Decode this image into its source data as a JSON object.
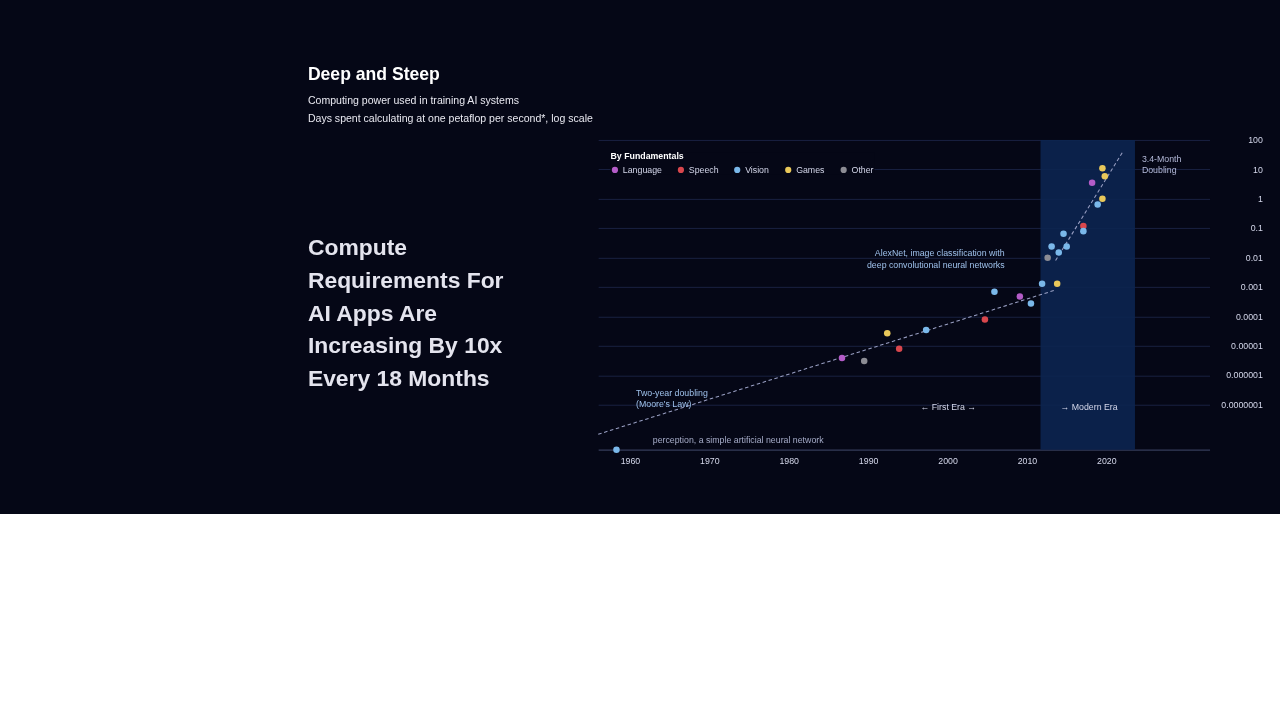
{
  "chart_data": {
    "type": "scatter",
    "title": "Deep and Steep",
    "subtitle": "Computing power used in training AI systems\nDays spent calculating at one petaflop per second*, log scale",
    "legend_title": "By Fundamentals",
    "log": "y",
    "grid": "y",
    "legend": "top left",
    "marker": "circle",
    "xlim": [
      1956,
      2033
    ],
    "xticks": [
      1960,
      1970,
      1980,
      1990,
      2000,
      2010,
      2020
    ],
    "ylim": [
      3e-09,
      100
    ],
    "yticks": [
      100,
      10,
      1,
      0.1,
      0.01,
      0.001,
      0.0001,
      {
        "value": 1e-05,
        "label": "0.00001"
      },
      {
        "value": 1e-06,
        "label": "0.000001"
      },
      {
        "value": 1e-07,
        "label": "0.0000001"
      }
    ],
    "series": [
      {
        "name": "Language",
        "color": "#b45cc8",
        "x": [
          1986.7,
          2009.1,
          2018.2
        ],
        "values": [
          3.9e-06,
          0.00048,
          3.5
        ]
      },
      {
        "name": "Speech",
        "color": "#d9474d",
        "x": [
          1993.9,
          2004.7,
          2017.1
        ],
        "values": [
          8e-06,
          8e-05,
          0.12
        ]
      },
      {
        "name": "Vision",
        "color": "#7ab8ea",
        "x": [
          1958.3,
          1997.3,
          2005.9,
          2010.5,
          2011.9,
          2013.1,
          2014.0,
          2015.0,
          2014.6,
          2017.1,
          2018.9
        ],
        "values": [
          3e-09,
          3.5e-05,
          0.0007,
          0.00028,
          0.0013,
          0.024,
          0.015,
          0.024,
          0.065,
          0.08,
          0.64
        ]
      },
      {
        "name": "Games",
        "color": "#e9c85a",
        "x": [
          1992.4,
          2013.8,
          2019.5,
          2019.8,
          2019.5
        ],
        "values": [
          2.7e-05,
          0.0013,
          11,
          5.9,
          1.0
        ]
      },
      {
        "name": "Other",
        "color": "#8c8c94",
        "x": [
          1989.5,
          2012.6
        ],
        "values": [
          3.1e-06,
          0.01
        ]
      },
      {
        "type": "line",
        "marker": "none",
        "line_style": "dashed",
        "color": "#9aa0c4",
        "x": [
          1956,
          2013.6
        ],
        "values": [
          1e-08,
          0.0008
        ]
      },
      {
        "type": "line",
        "marker": "none",
        "line_style": "dashed",
        "color": "#9aa0c4",
        "x": [
          2013.6,
          2022
        ],
        "values": [
          0.008,
          37
        ]
      }
    ],
    "bands": [
      {
        "axis": "x",
        "from": 2011.7,
        "to": 2023.6,
        "color": "#0c2550"
      }
    ],
    "annotations": [
      "perception, a simple artificial neural network",
      "AlexNet, image classification with\ndeep convolutional neural networks",
      "Two-year doubling\n(Moore's Law)",
      "3.4-Month\nDoubling",
      "←  First Era  →",
      "→  Modern Era",
      "Compute\nRequirements For\nAI Apps Are\nIncreasing By 10x\nEvery 18 Months"
    ]
  }
}
